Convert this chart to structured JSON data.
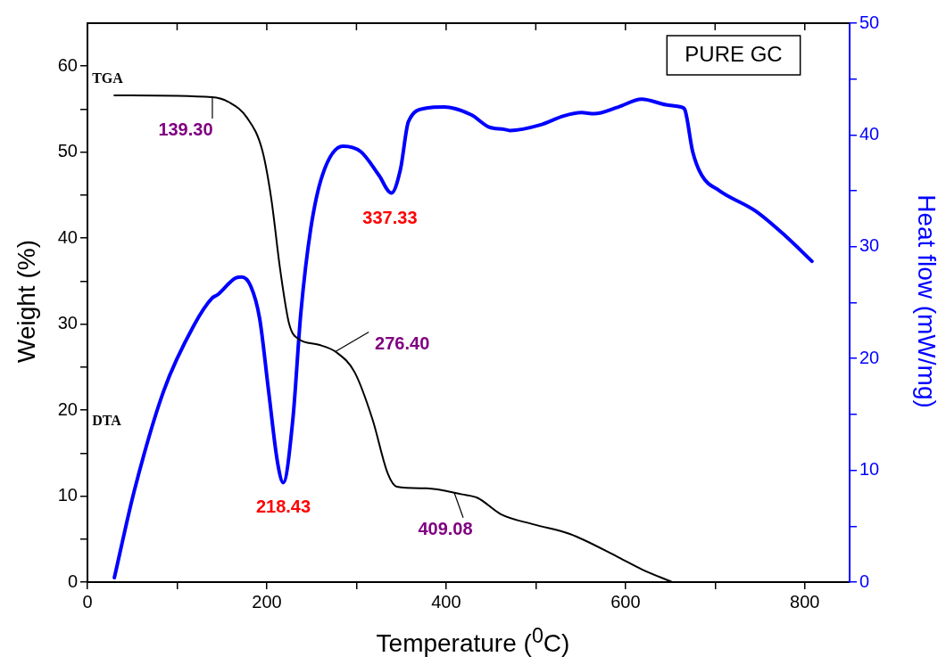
{
  "chart_data": {
    "type": "line",
    "title": "PURE GC",
    "xlabel": "Temperature ($^{0}$C)",
    "ylabel": "Weight (%)",
    "y2label": "Heat flow (mW/mg)",
    "xlim": [
      0,
      850
    ],
    "xticks": [
      0,
      {
        "value": 100,
        "label": null
      },
      200,
      {
        "value": 300,
        "label": null
      },
      400,
      {
        "value": 500,
        "label": null
      },
      600,
      {
        "value": 700,
        "label": null
      },
      800
    ],
    "ylim": [
      0,
      65
    ],
    "yticks": [
      0,
      {
        "value": 5,
        "label": null
      },
      10,
      {
        "value": 15,
        "label": null
      },
      20,
      {
        "value": 25,
        "label": null
      },
      30,
      {
        "value": 35,
        "label": null
      },
      40,
      {
        "value": 45,
        "label": null
      },
      50,
      {
        "value": 55,
        "label": null
      },
      60
    ],
    "y2lim": [
      0,
      50
    ],
    "y2ticks": [
      0,
      {
        "value": 5,
        "label": null
      },
      10,
      {
        "value": 15,
        "label": null
      },
      20,
      {
        "value": 25,
        "label": null
      },
      30,
      {
        "value": 35,
        "label": null
      },
      40,
      {
        "value": 45,
        "label": null
      },
      50
    ],
    "grid": false,
    "legend": false,
    "marker": "none",
    "line_style": "solid",
    "series": [
      {
        "name": "TGA",
        "color": "#000000",
        "x": [
          30,
          139,
          158,
          178,
          195,
          205,
          215,
          225,
          235,
          258,
          278,
          298,
          318,
          335,
          345,
          378,
          418,
          435,
          461,
          498,
          538,
          592,
          618,
          652
        ],
        "values": [
          56.6,
          56.4,
          55.8,
          54.0,
          50.2,
          44.6,
          36.3,
          30.0,
          28.3,
          27.6,
          26.7,
          24.4,
          18.9,
          12.6,
          11.1,
          10.9,
          10.2,
          9.8,
          7.9,
          6.7,
          5.6,
          2.9,
          1.5,
          0
        ]
      },
      {
        "name": "DTA",
        "color": "#0000ff",
        "axis": "y2",
        "x": [
          30,
          52,
          85,
          119,
          139,
          145,
          165,
          172,
          182,
          192,
          202,
          212,
          218.4,
          229,
          238,
          249,
          262,
          285,
          305,
          325,
          339,
          349,
          358,
          378,
          398,
          428,
          448,
          465,
          471,
          505,
          531,
          551,
          565,
          592,
          618,
          645,
          662,
          666,
          675,
          685,
          705,
          745,
          778,
          808
        ],
        "values": [
          0.4,
          8.1,
          17.1,
          23.0,
          25.4,
          25.7,
          27.2,
          27.3,
          26.5,
          23.6,
          17.1,
          10.7,
          8.9,
          14.5,
          24.1,
          31.6,
          36.4,
          39.0,
          38.5,
          36.4,
          34.8,
          36.9,
          41.2,
          42.4,
          42.5,
          41.8,
          40.7,
          40.5,
          40.4,
          40.9,
          41.7,
          42.0,
          41.9,
          42.5,
          43.2,
          42.7,
          42.5,
          42.3,
          38.5,
          36.4,
          35.0,
          33.2,
          31.0,
          28.7
        ]
      }
    ],
    "annotations": [
      {
        "text": "139.30",
        "x": 139.3,
        "y": 56.4
      },
      {
        "text": "218.43",
        "x": 218.43,
        "y": 11.6
      },
      {
        "text": "276.40",
        "x": 276.4,
        "y": 26.8
      },
      {
        "text": "337.33",
        "x": 337.33,
        "y": 45.2
      },
      {
        "text": "409.08",
        "x": 409.08,
        "y": 10.4
      }
    ]
  }
}
